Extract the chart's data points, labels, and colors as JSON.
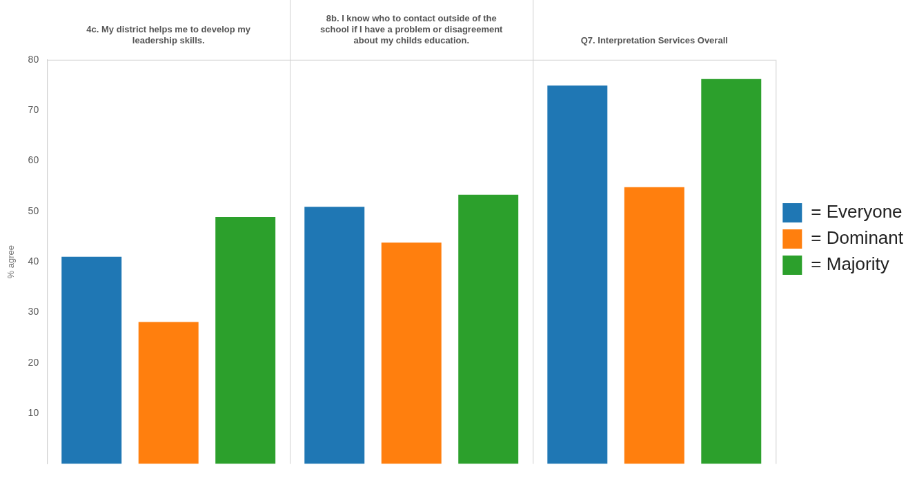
{
  "chart_data": {
    "type": "bar",
    "ylabel": "% agree",
    "categories": [
      "4c. My district helps me to develop my leadership skills.",
      "8b. I know who to contact outside of the school if I have a problem or disagreement about my childs education.",
      "Q7. Interpretation Services Overall"
    ],
    "series": [
      {
        "name": "= Everyone",
        "color": "#1f77b4",
        "values": [
          41,
          50.9,
          74.9
        ]
      },
      {
        "name": "= Dominant",
        "color": "#ff7f0e",
        "values": [
          28.1,
          43.8,
          54.8
        ]
      },
      {
        "name": "= Majority",
        "color": "#2ca02c",
        "values": [
          48.9,
          53.3,
          76.2
        ]
      }
    ],
    "ylim": [
      0,
      80
    ],
    "yticks": [
      10,
      20,
      30,
      40,
      50,
      60,
      70,
      80
    ],
    "grid": false,
    "legend": "right"
  }
}
